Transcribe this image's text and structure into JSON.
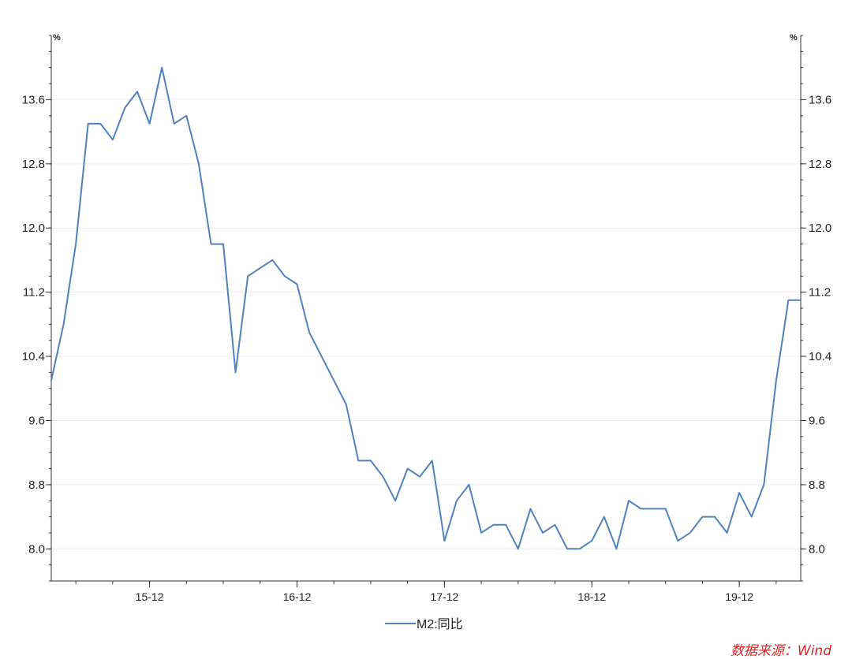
{
  "chart_data": {
    "type": "line",
    "title": "",
    "y_unit_left": "%",
    "y_unit_right": "%",
    "ylim": [
      7.6,
      14.4
    ],
    "yticks": [
      "8.0",
      "8.8",
      "9.6",
      "10.4",
      "11.2",
      "12.0",
      "12.8",
      "13.6"
    ],
    "ytick_values": [
      8.0,
      8.8,
      9.6,
      10.4,
      11.2,
      12.0,
      12.8,
      13.6
    ],
    "xtick_labels": [
      "15-12",
      "16-12",
      "17-12",
      "18-12",
      "19-12"
    ],
    "xtick_index": [
      8,
      20,
      32,
      44,
      56
    ],
    "x_count": 62,
    "grid": true,
    "legend_position": "bottom",
    "series": [
      {
        "name": "M2:同比",
        "color": "#4f81bd",
        "values": [
          10.1,
          10.8,
          11.8,
          13.3,
          13.3,
          13.1,
          13.5,
          13.7,
          13.3,
          14.0,
          13.3,
          13.4,
          12.8,
          11.8,
          11.8,
          10.2,
          11.4,
          11.5,
          11.6,
          11.4,
          11.3,
          10.7,
          10.4,
          10.1,
          9.8,
          9.1,
          9.1,
          8.9,
          8.6,
          9.0,
          8.9,
          9.1,
          8.1,
          8.6,
          8.8,
          8.2,
          8.3,
          8.3,
          8.0,
          8.5,
          8.2,
          8.3,
          8.0,
          8.0,
          8.1,
          8.4,
          8.0,
          8.6,
          8.5,
          8.5,
          8.5,
          8.1,
          8.2,
          8.4,
          8.4,
          8.2,
          8.7,
          8.4,
          8.8,
          10.1,
          11.1,
          11.1
        ]
      }
    ]
  },
  "legend": {
    "label": "M2:同比"
  },
  "source": {
    "text": "数据来源：Wind",
    "color": "#d62728"
  }
}
